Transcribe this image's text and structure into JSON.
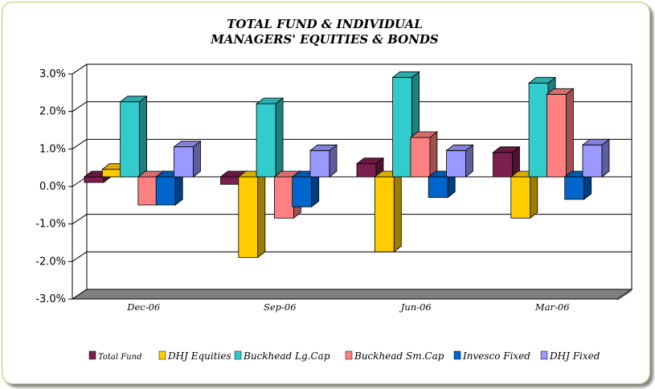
{
  "chart_data": {
    "type": "bar",
    "title_lines": [
      "TOTAL FUND  & INDIVIDUAL",
      "MANAGERS' EQUITIES & BONDS"
    ],
    "categories": [
      "Dec-06",
      "Sep-06",
      "Jun-06",
      "Mar-06"
    ],
    "ylim": [
      -3.0,
      3.0
    ],
    "yticks": [
      3.0,
      2.0,
      1.0,
      0.0,
      -1.0,
      -2.0,
      -3.0
    ],
    "ytick_labels": [
      "3.0%",
      "2.0%",
      "1.0%",
      "0.0%",
      "-1.0%",
      "-2.0%",
      "-3.0%"
    ],
    "grid": true,
    "legend_position": "bottom",
    "series": [
      {
        "name": "Total Fund",
        "color": "#7b1f4e",
        "values": [
          -0.15,
          -0.2,
          0.35,
          0.65
        ]
      },
      {
        "name": "DHJ Equities",
        "color": "#ffcc00",
        "values": [
          0.2,
          -2.15,
          -2.0,
          -1.1
        ]
      },
      {
        "name": "Buckhead Lg.Cap",
        "color": "#33cccc",
        "values": [
          2.0,
          1.95,
          2.65,
          2.5
        ]
      },
      {
        "name": "Buckhead Sm.Cap",
        "color": "#ff8080",
        "values": [
          -0.75,
          -1.1,
          1.05,
          2.2
        ]
      },
      {
        "name": "Invesco Fixed",
        "color": "#0066cc",
        "values": [
          -0.75,
          -0.8,
          -0.55,
          -0.6
        ]
      },
      {
        "name": "DHJ Fixed",
        "color": "#9999ff",
        "values": [
          0.8,
          0.7,
          0.7,
          0.85
        ]
      }
    ]
  }
}
